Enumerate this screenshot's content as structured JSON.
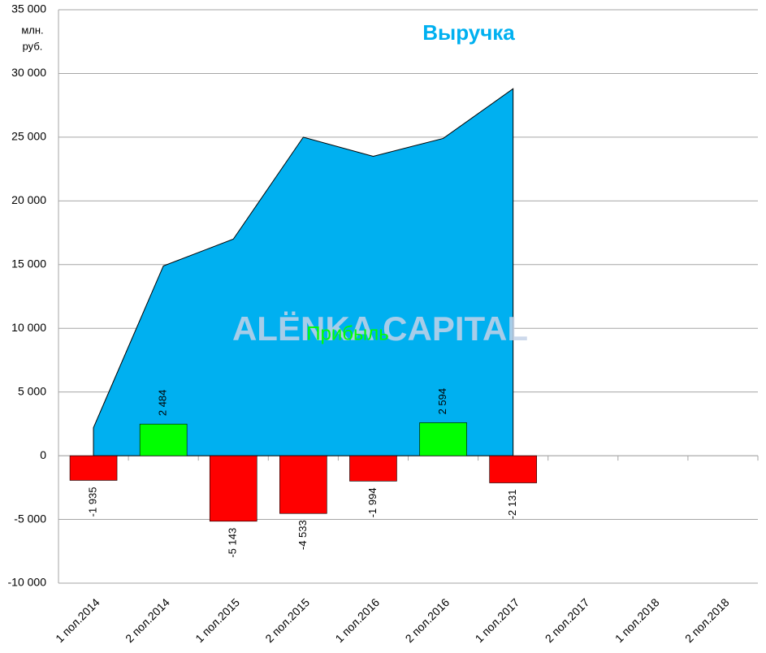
{
  "chart_data": {
    "type": "area-bar",
    "categories": [
      "1 пол.2014",
      "2 пол.2014",
      "1 пол.2015",
      "2 пол.2015",
      "1 пол.2016",
      "2 пол.2016",
      "1 пол.2017",
      "2 пол.2017",
      "1 пол.2018",
      "2 пол.2018"
    ],
    "series": [
      {
        "name": "Выручка",
        "type": "area",
        "color": "#00b0f0",
        "values": [
          2200,
          14900,
          17000,
          25000,
          23500,
          24900,
          28800,
          null,
          null,
          null
        ]
      },
      {
        "name": "Прибыль",
        "type": "bar",
        "color": "#00ff00",
        "colors": [
          "#ff0000",
          "#00ff00",
          "#ff0000",
          "#ff0000",
          "#ff0000",
          "#00ff00",
          "#ff0000",
          null,
          null,
          null
        ],
        "values": [
          -1935,
          2484,
          -5143,
          -4533,
          -1994,
          2594,
          -2131,
          null,
          null,
          null
        ],
        "value_labels": [
          "-1 935",
          "2 484",
          "-5 143",
          "-4 533",
          "-1 994",
          "2 594",
          "-2 131",
          null,
          null,
          null
        ]
      }
    ],
    "y_unit": [
      "млн.",
      "руб."
    ],
    "watermark": "ALЁNKA CAPITAL",
    "ylim": [
      -10000,
      35000
    ],
    "yticks": [
      {
        "value": -10000,
        "label": "-10 000"
      },
      {
        "value": -5000,
        "label": "-5 000"
      },
      0,
      {
        "value": 5000,
        "label": "5 000"
      },
      {
        "value": 10000,
        "label": "10 000"
      },
      {
        "value": 15000,
        "label": "15 000"
      },
      {
        "value": 20000,
        "label": "20 000"
      },
      {
        "value": 25000,
        "label": "25 000"
      },
      {
        "value": 30000,
        "label": "30 000"
      },
      {
        "value": 35000,
        "label": "35 000"
      }
    ],
    "grid": true
  }
}
